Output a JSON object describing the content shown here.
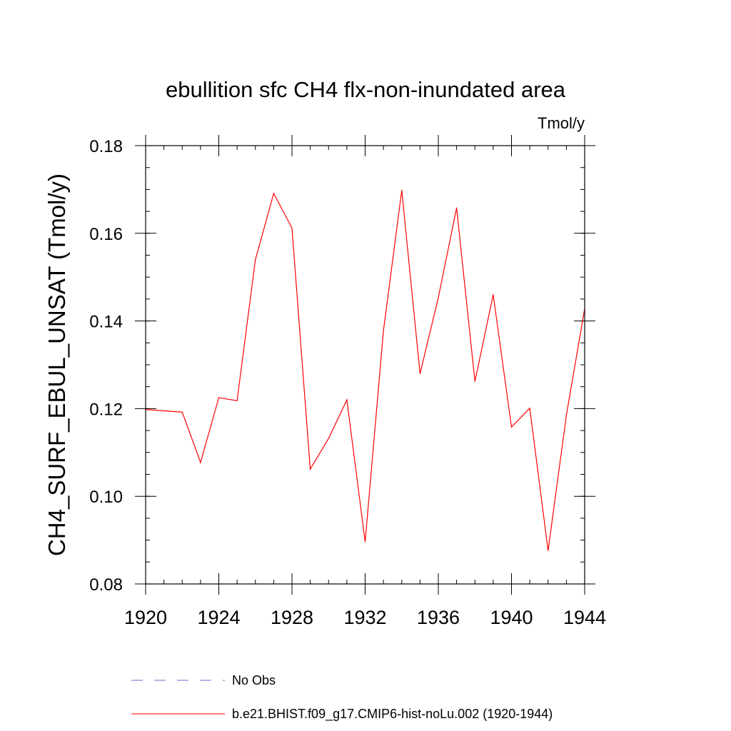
{
  "chart_data": {
    "type": "line",
    "title": "ebullition sfc CH4 flx-non-inundated area",
    "units_label": "Tmol/y",
    "ylabel": "CH4_SURF_EBUL_UNSAT  (Tmol/y)",
    "xlabel": "",
    "xlim": [
      1920,
      1944
    ],
    "ylim": [
      0.08,
      0.18
    ],
    "x_ticks": [
      1920,
      1924,
      1928,
      1932,
      1936,
      1940,
      1944
    ],
    "x_tick_labels": [
      "1920",
      "1924",
      "1928",
      "1932",
      "1936",
      "1940",
      "1944"
    ],
    "y_ticks": [
      0.08,
      0.1,
      0.12,
      0.14,
      0.16,
      0.18
    ],
    "y_tick_labels": [
      "0.08",
      "0.10",
      "0.12",
      "0.14",
      "0.16",
      "0.18"
    ],
    "grid": false,
    "legend_position": "bottom",
    "series": [
      {
        "name": "b.e21.BHIST.f09_g17.CMIP6-hist-noLu.002 (1920-1944)",
        "color": "#ff0000",
        "style": "solid",
        "x": [
          1920,
          1921,
          1922,
          1923,
          1924,
          1925,
          1926,
          1927,
          1928,
          1929,
          1930,
          1931,
          1932,
          1933,
          1934,
          1935,
          1936,
          1937,
          1938,
          1939,
          1940,
          1941,
          1942,
          1943,
          1944
        ],
        "values": [
          0.1198,
          0.1195,
          0.1192,
          0.1077,
          0.1225,
          0.1218,
          0.154,
          0.1691,
          0.1612,
          0.1062,
          0.1132,
          0.122,
          0.0896,
          0.1377,
          0.1698,
          0.128,
          0.1453,
          0.1658,
          0.1262,
          0.146,
          0.1158,
          0.1201,
          0.0876,
          0.1185,
          0.1428
        ]
      }
    ],
    "legend": [
      {
        "label": "No Obs",
        "color": "#6a6ad0",
        "style": "dashed"
      },
      {
        "label": "b.e21.BHIST.f09_g17.CMIP6-hist-noLu.002 (1920-1944)",
        "color": "#ff0000",
        "style": "solid"
      }
    ]
  }
}
